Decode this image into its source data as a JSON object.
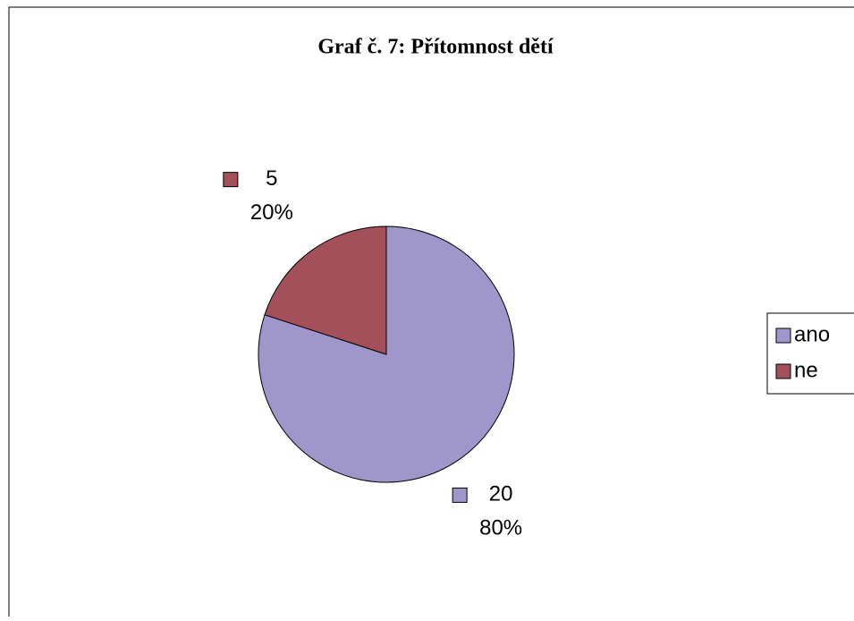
{
  "chart_data": {
    "type": "pie",
    "title": "Graf č. 7: Přítomnost dětí",
    "categories": [
      "ano",
      "ne"
    ],
    "values": [
      20,
      5
    ],
    "percent_labels": [
      "80%",
      "20%"
    ],
    "colors": [
      "#9f97cc",
      "#a4505a"
    ],
    "legend": "right"
  }
}
